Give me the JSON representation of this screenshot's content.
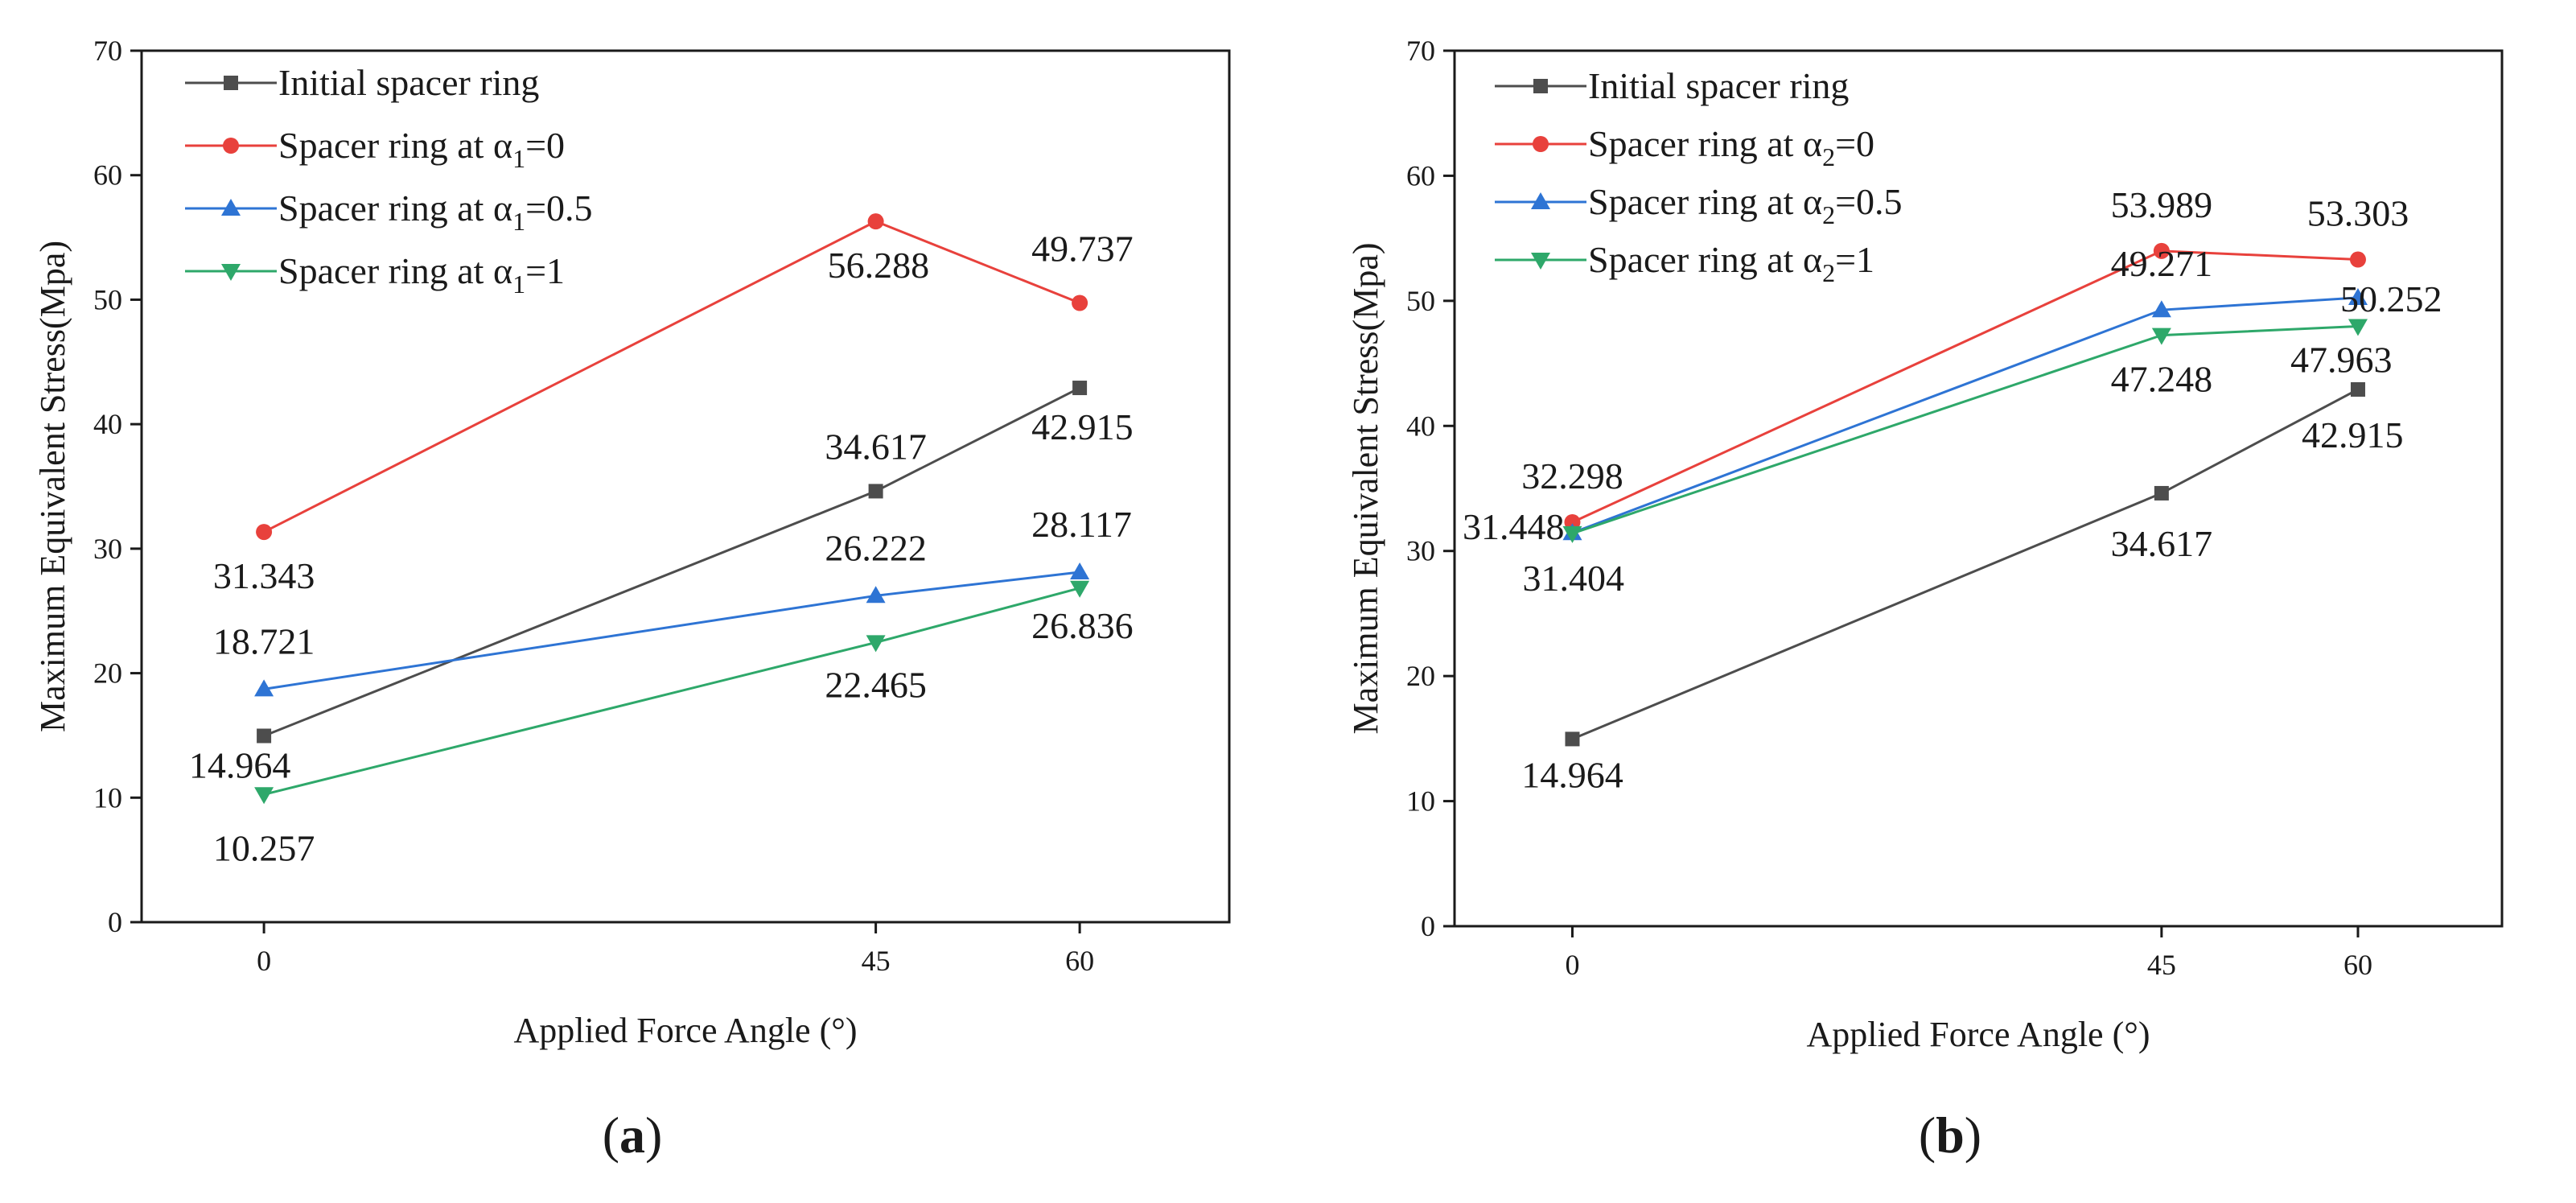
{
  "chart_data": [
    {
      "type": "line",
      "panel_label": "(a)",
      "panel_letter": "a",
      "title": "",
      "xlabel": "Applied  Force  Angle (°)",
      "ylabel": "Maximum Equivalent Stress(Mpa)",
      "x": [
        0,
        45,
        60
      ],
      "x_tick_labels": [
        "0",
        "45",
        "60"
      ],
      "xlim": [
        -9,
        71
      ],
      "ylim": [
        0,
        70
      ],
      "y_ticks": [
        0,
        10,
        20,
        30,
        40,
        50,
        60,
        70
      ],
      "legend_position": "top-left",
      "series": [
        {
          "name": "Initial spacer ring",
          "label_prefix": "Initial spacer ring",
          "sub": "",
          "label_suffix": "",
          "color": "#4d4d4d",
          "marker": "square",
          "values": [
            14.964,
            34.617,
            42.915
          ],
          "value_labels": [
            "14.964",
            "34.617",
            "42.915"
          ]
        },
        {
          "name": "Spacer ring at α1=0",
          "label_prefix": "Spacer ring at α",
          "sub": "1",
          "label_suffix": "=0",
          "color": "#e8413c",
          "marker": "circle",
          "values": [
            31.343,
            56.288,
            49.737
          ],
          "value_labels": [
            "31.343",
            "56.288",
            "49.737"
          ]
        },
        {
          "name": "Spacer ring at α1=0.5",
          "label_prefix": "Spacer ring at α",
          "sub": "1",
          "label_suffix": "=0.5",
          "color": "#2e74d4",
          "marker": "triangle-up",
          "values": [
            18.721,
            26.222,
            28.117
          ],
          "value_labels": [
            "18.721",
            "26.222",
            "28.117"
          ]
        },
        {
          "name": "Spacer ring at α1=1",
          "label_prefix": "Spacer ring at α",
          "sub": "1",
          "label_suffix": "=1",
          "color": "#2ea86a",
          "marker": "triangle-down",
          "values": [
            10.257,
            22.465,
            26.836
          ],
          "value_labels": [
            "10.257",
            "22.465",
            "26.836"
          ]
        }
      ]
    },
    {
      "type": "line",
      "panel_label": "(b)",
      "panel_letter": "b",
      "title": "",
      "xlabel": "Applied  Force  Angle (°)",
      "ylabel": "Maximum Equivalent Stress(Mpa)",
      "x": [
        0,
        45,
        60
      ],
      "x_tick_labels": [
        "0",
        "45",
        "60"
      ],
      "xlim": [
        -9,
        71
      ],
      "ylim": [
        0,
        70
      ],
      "y_ticks": [
        0,
        10,
        20,
        30,
        40,
        50,
        60,
        70
      ],
      "legend_position": "top-left",
      "series": [
        {
          "name": "Initial spacer ring",
          "label_prefix": "Initial spacer ring",
          "sub": "",
          "label_suffix": "",
          "color": "#4d4d4d",
          "marker": "square",
          "values": [
            14.964,
            34.617,
            42.915
          ],
          "value_labels": [
            "14.964",
            "34.617",
            "42.915"
          ]
        },
        {
          "name": "Spacer ring at α2=0",
          "label_prefix": "Spacer ring at α",
          "sub": "2",
          "label_suffix": "=0",
          "color": "#e8413c",
          "marker": "circle",
          "values": [
            32.298,
            53.989,
            53.303
          ],
          "value_labels": [
            "32.298",
            "53.989",
            "53.303"
          ]
        },
        {
          "name": "Spacer ring at α2=0.5",
          "label_prefix": "Spacer ring at α",
          "sub": "2",
          "label_suffix": "=0.5",
          "color": "#2e74d4",
          "marker": "triangle-up",
          "values": [
            31.448,
            49.271,
            50.252
          ],
          "value_labels": [
            "31.448",
            "49.271",
            "50.252"
          ]
        },
        {
          "name": "Spacer ring at α2=1",
          "label_prefix": "Spacer ring at α",
          "sub": "2",
          "label_suffix": "=1",
          "color": "#2ea86a",
          "marker": "triangle-down",
          "values": [
            31.404,
            47.248,
            47.963
          ],
          "value_labels": [
            "31.404",
            "47.248",
            "47.963"
          ]
        }
      ]
    }
  ]
}
